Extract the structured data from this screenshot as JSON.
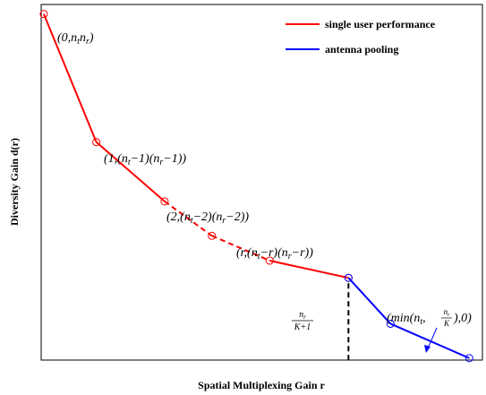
{
  "chart_data": {
    "type": "line",
    "title": "",
    "xlabel": "Spatial Multiplexing Gain r",
    "ylabel": "Diversity Gain d(r)",
    "grid": false,
    "legend_position": "top-right",
    "ticks": "none",
    "series": [
      {
        "name": "single user performance",
        "color": "#ff0000",
        "points": [
          {
            "x": 0,
            "y": 9.0
          },
          {
            "x": 1.0,
            "y": 5.65
          },
          {
            "x": 2.3,
            "y": 4.1
          },
          {
            "x": 3.2,
            "y": 3.2
          },
          {
            "x": 4.3,
            "y": 2.55
          },
          {
            "x": 5.8,
            "y": 2.1
          }
        ],
        "dashed_segment": [
          2,
          4
        ],
        "marker": "circle-open"
      },
      {
        "name": "antenna pooling",
        "color": "#0000ff",
        "points": [
          {
            "x": 5.8,
            "y": 2.1
          },
          {
            "x": 6.6,
            "y": 0.9
          },
          {
            "x": 8.1,
            "y": 0.0
          }
        ],
        "marker": "circle-open"
      }
    ],
    "vertical_marker": {
      "x": 5.8,
      "label_num": "n",
      "label_num_sub": "r",
      "label_den": "K+1"
    },
    "annotations": [
      {
        "id": "a0",
        "text": "(0,n",
        "sub1": "t",
        "mid": "n",
        "sub2": "r",
        "end": ")"
      },
      {
        "id": "a1",
        "text": "(1,(n",
        "sub1": "t",
        "mid": "−1)(n",
        "sub2": "r",
        "end": "−1))"
      },
      {
        "id": "a2",
        "text": "(2,(n",
        "sub1": "t",
        "mid": "−2)(n",
        "sub2": "r",
        "end": "−2))"
      },
      {
        "id": "a3",
        "text": "(r,(n",
        "sub1": "t",
        "mid": "−r)(n",
        "sub2": "r",
        "end": "−r))"
      },
      {
        "id": "a4",
        "prefix": "(min(n",
        "sub1": "t",
        "comma": ",",
        "frac_num": "n",
        "frac_num_sub": "r",
        "frac_den": "K",
        "end": "),0)"
      }
    ]
  }
}
